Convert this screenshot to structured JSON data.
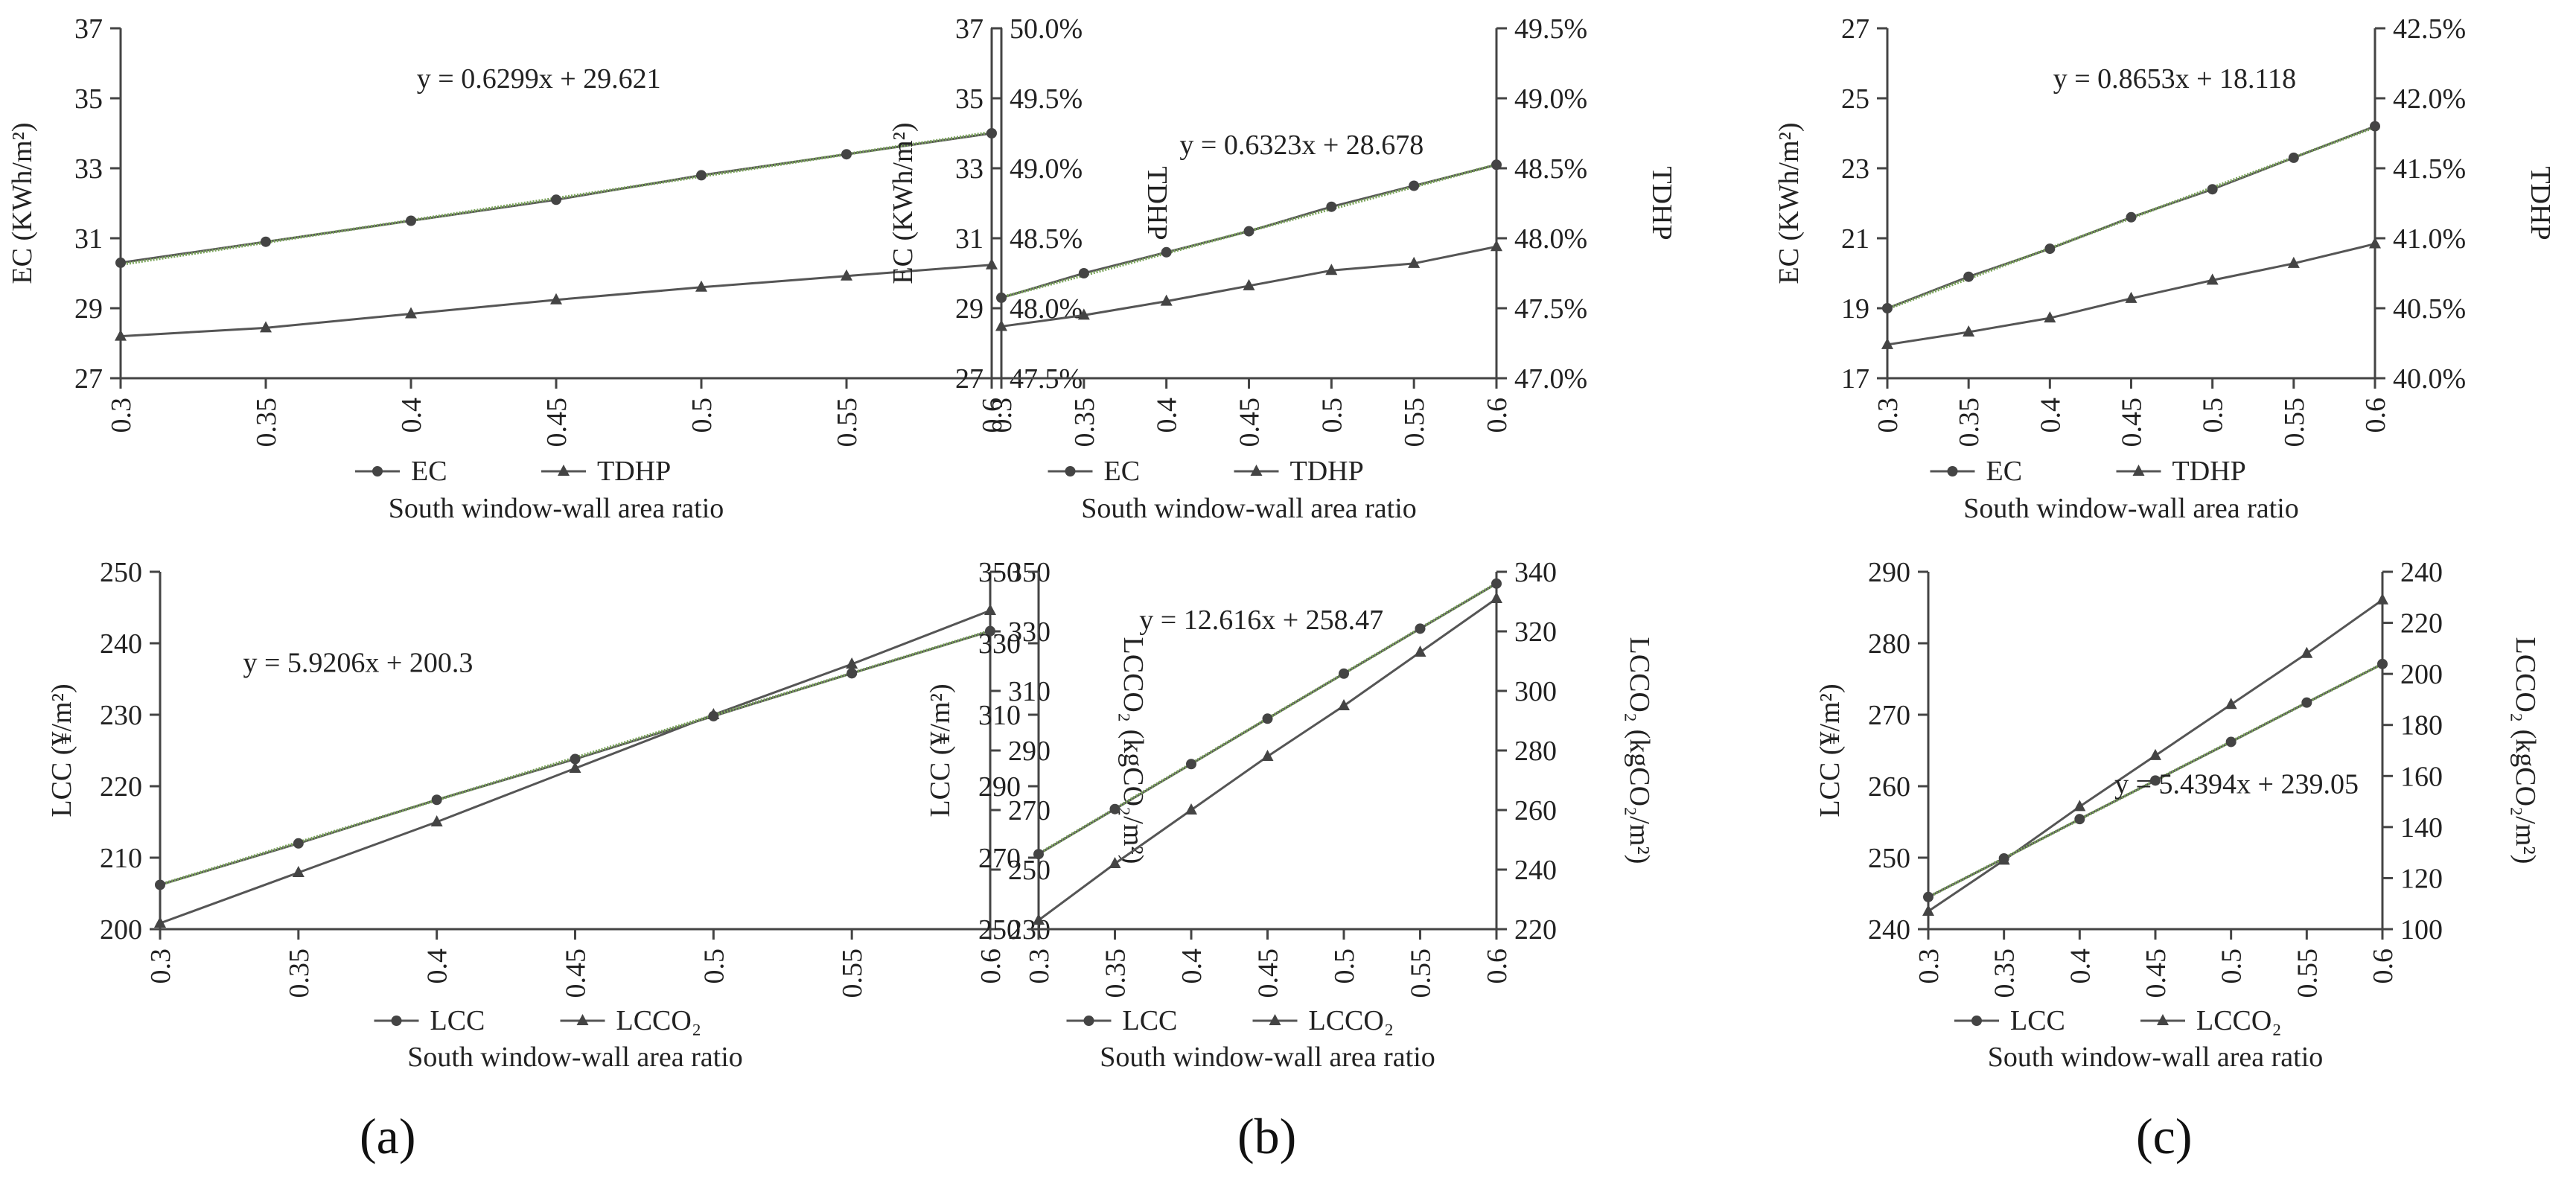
{
  "figure": {
    "panel_labels": [
      "(a)",
      "(b)",
      "(c)"
    ]
  },
  "colors": {
    "axis": "#444444",
    "grid": "#ffffff",
    "line": "#555555",
    "trend": "#7aa35a",
    "marker": "#444444"
  },
  "chart_data": [
    {
      "id": "a-top",
      "type": "line",
      "column": 0,
      "row": 0,
      "categories": [
        "0.3",
        "0.35",
        "0.4",
        "0.45",
        "0.5",
        "0.55",
        "0.6"
      ],
      "x": [
        0.3,
        0.35,
        0.4,
        0.45,
        0.5,
        0.55,
        0.6
      ],
      "xlabel": "South window-wall area ratio",
      "ylabel_left": "EC (KWh/m²)",
      "ylabel_right": "TDHP",
      "ylim_left": [
        27,
        37
      ],
      "yticks_left": [
        "27",
        "29",
        "31",
        "33",
        "35",
        "37"
      ],
      "ylim_right": [
        0.475,
        0.5
      ],
      "yticks_right": [
        "47.5%",
        "48.0%",
        "48.5%",
        "49.0%",
        "49.5%",
        "50.0%"
      ],
      "series": [
        {
          "name": "EC",
          "axis": "left",
          "marker": "circle",
          "values": [
            30.3,
            30.9,
            31.5,
            32.1,
            32.8,
            33.4,
            34.0
          ]
        },
        {
          "name": "TDHP",
          "axis": "right",
          "marker": "triangle",
          "values": [
            0.478,
            0.4786,
            0.4796,
            0.4806,
            0.4815,
            0.4823,
            0.4831
          ]
        }
      ],
      "trendline": {
        "series": "EC",
        "equation": "y = 0.6299x + 29.621",
        "slope": 0.6299,
        "intercept": 29.621
      },
      "legend": [
        "EC",
        "TDHP"
      ]
    },
    {
      "id": "b-top",
      "type": "line",
      "column": 1,
      "row": 0,
      "categories": [
        "0.3",
        "0.35",
        "0.4",
        "0.45",
        "0.5",
        "0.55",
        "0.6"
      ],
      "x": [
        0.3,
        0.35,
        0.4,
        0.45,
        0.5,
        0.55,
        0.6
      ],
      "xlabel": "South window-wall area ratio",
      "ylabel_left": "EC (KWh/m²)",
      "ylabel_right": "TDHP",
      "ylim_left": [
        27,
        37
      ],
      "yticks_left": [
        "27",
        "29",
        "31",
        "33",
        "35",
        "37"
      ],
      "ylim_right": [
        0.47,
        0.495
      ],
      "yticks_right": [
        "47.0%",
        "47.5%",
        "48.0%",
        "48.5%",
        "49.0%",
        "49.5%"
      ],
      "series": [
        {
          "name": "EC",
          "axis": "left",
          "marker": "circle",
          "values": [
            29.3,
            30.0,
            30.6,
            31.2,
            31.9,
            32.5,
            33.1
          ]
        },
        {
          "name": "TDHP",
          "axis": "right",
          "marker": "triangle",
          "values": [
            0.4737,
            0.4745,
            0.4755,
            0.4766,
            0.4777,
            0.4782,
            0.4794
          ]
        }
      ],
      "trendline": {
        "series": "EC",
        "equation": "y = 0.6323x + 28.678",
        "slope": 0.6323,
        "intercept": 28.678
      },
      "legend": [
        "EC",
        "TDHP"
      ]
    },
    {
      "id": "c-top",
      "type": "line",
      "column": 2,
      "row": 0,
      "categories": [
        "0.3",
        "0.35",
        "0.4",
        "0.45",
        "0.5",
        "0.55",
        "0.6"
      ],
      "x": [
        0.3,
        0.35,
        0.4,
        0.45,
        0.5,
        0.55,
        0.6
      ],
      "xlabel": "South window-wall area ratio",
      "ylabel_left": "EC (KWh/m²)",
      "ylabel_right": "TDHP",
      "ylim_left": [
        17,
        27
      ],
      "yticks_left": [
        "17",
        "19",
        "21",
        "23",
        "25",
        "27"
      ],
      "ylim_right": [
        0.4,
        0.425
      ],
      "yticks_right": [
        "40.0%",
        "40.5%",
        "41.0%",
        "41.5%",
        "42.0%",
        "42.5%"
      ],
      "series": [
        {
          "name": "EC",
          "axis": "left",
          "marker": "circle",
          "values": [
            19.0,
            19.9,
            20.7,
            21.6,
            22.4,
            23.3,
            24.2
          ]
        },
        {
          "name": "TDHP",
          "axis": "right",
          "marker": "triangle",
          "values": [
            0.4024,
            0.4033,
            0.4043,
            0.4057,
            0.407,
            0.4082,
            0.4096
          ]
        }
      ],
      "trendline": {
        "series": "EC",
        "equation": "y = 0.8653x + 18.118",
        "slope": 0.8653,
        "intercept": 18.118
      },
      "legend": [
        "EC",
        "TDHP"
      ]
    },
    {
      "id": "a-bottom",
      "type": "line",
      "column": 0,
      "row": 1,
      "categories": [
        "0.3",
        "0.35",
        "0.4",
        "0.45",
        "0.5",
        "0.55",
        "0.6"
      ],
      "x": [
        0.3,
        0.35,
        0.4,
        0.45,
        0.5,
        0.55,
        0.6
      ],
      "xlabel": "South window-wall area ratio",
      "ylabel_left": "LCC (¥/m²)",
      "ylabel_right": "LCCO₂ (kgCO₂/m²)",
      "ylim_left": [
        200,
        250
      ],
      "yticks_left": [
        "200",
        "210",
        "220",
        "230",
        "240",
        "250"
      ],
      "ylim_right": [
        230,
        350
      ],
      "yticks_right": [
        "230",
        "250",
        "270",
        "290",
        "310",
        "330",
        "350"
      ],
      "series": [
        {
          "name": "LCC",
          "axis": "left",
          "marker": "circle",
          "values": [
            206.2,
            212.0,
            218.1,
            223.8,
            229.8,
            235.8,
            241.7
          ]
        },
        {
          "name": "LCCO₂",
          "axis": "right",
          "marker": "triangle",
          "values": [
            232,
            249,
            266,
            284,
            302,
            319,
            337
          ]
        }
      ],
      "trendline": {
        "series": "LCC",
        "equation": "y = 5.9206x + 200.3",
        "slope": 5.9206,
        "intercept": 200.3
      },
      "legend": [
        "LCC",
        "LCCO₂"
      ]
    },
    {
      "id": "b-bottom",
      "type": "line",
      "column": 1,
      "row": 1,
      "categories": [
        "0.3",
        "0.35",
        "0.4",
        "0.45",
        "0.5",
        "0.55",
        "0.6"
      ],
      "x": [
        0.3,
        0.35,
        0.4,
        0.45,
        0.5,
        0.55,
        0.6
      ],
      "xlabel": "South window-wall area ratio",
      "ylabel_left": "LCC (¥/m²)",
      "ylabel_right": "LCCO₂ (kgCO₂/m²)",
      "ylim_left": [
        250,
        350
      ],
      "yticks_left": [
        "250",
        "270",
        "290",
        "310",
        "330",
        "350"
      ],
      "ylim_right": [
        220,
        340
      ],
      "yticks_right": [
        "220",
        "240",
        "260",
        "280",
        "300",
        "320",
        "340"
      ],
      "series": [
        {
          "name": "LCC",
          "axis": "left",
          "marker": "circle",
          "values": [
            271,
            283.6,
            296.2,
            308.9,
            321.5,
            334.1,
            346.7
          ]
        },
        {
          "name": "LCCO₂",
          "axis": "right",
          "marker": "triangle",
          "values": [
            223,
            242,
            260,
            278,
            295,
            313,
            331
          ]
        }
      ],
      "trendline": {
        "series": "LCC",
        "equation": "y = 12.616x + 258.47",
        "slope": 12.616,
        "intercept": 258.47
      },
      "legend": [
        "LCC",
        "LCCO₂"
      ]
    },
    {
      "id": "c-bottom",
      "type": "line",
      "column": 2,
      "row": 1,
      "categories": [
        "0.3",
        "0.35",
        "0.4",
        "0.45",
        "0.5",
        "0.55",
        "0.6"
      ],
      "x": [
        0.3,
        0.35,
        0.4,
        0.45,
        0.5,
        0.55,
        0.6
      ],
      "xlabel": "South window-wall area ratio",
      "ylabel_left": "LCC (¥/m²)",
      "ylabel_right": "LCCO₂ (kgCO₂/m²)",
      "ylim_left": [
        240,
        290
      ],
      "yticks_left": [
        "240",
        "250",
        "260",
        "270",
        "280",
        "290"
      ],
      "ylim_right": [
        100,
        240
      ],
      "yticks_right": [
        "100",
        "120",
        "140",
        "160",
        "180",
        "200",
        "220",
        "240"
      ],
      "series": [
        {
          "name": "LCC",
          "axis": "left",
          "marker": "circle",
          "values": [
            244.5,
            249.9,
            255.4,
            260.8,
            266.2,
            271.7,
            277.1
          ]
        },
        {
          "name": "LCCO₂",
          "axis": "right",
          "marker": "triangle",
          "values": [
            107,
            127,
            148,
            168,
            188,
            208,
            229
          ]
        }
      ],
      "trendline": {
        "series": "LCC",
        "equation": "y = 5.4394x + 239.05",
        "slope": 5.4394,
        "intercept": 239.05
      },
      "legend": [
        "LCC",
        "LCCO₂"
      ]
    }
  ]
}
